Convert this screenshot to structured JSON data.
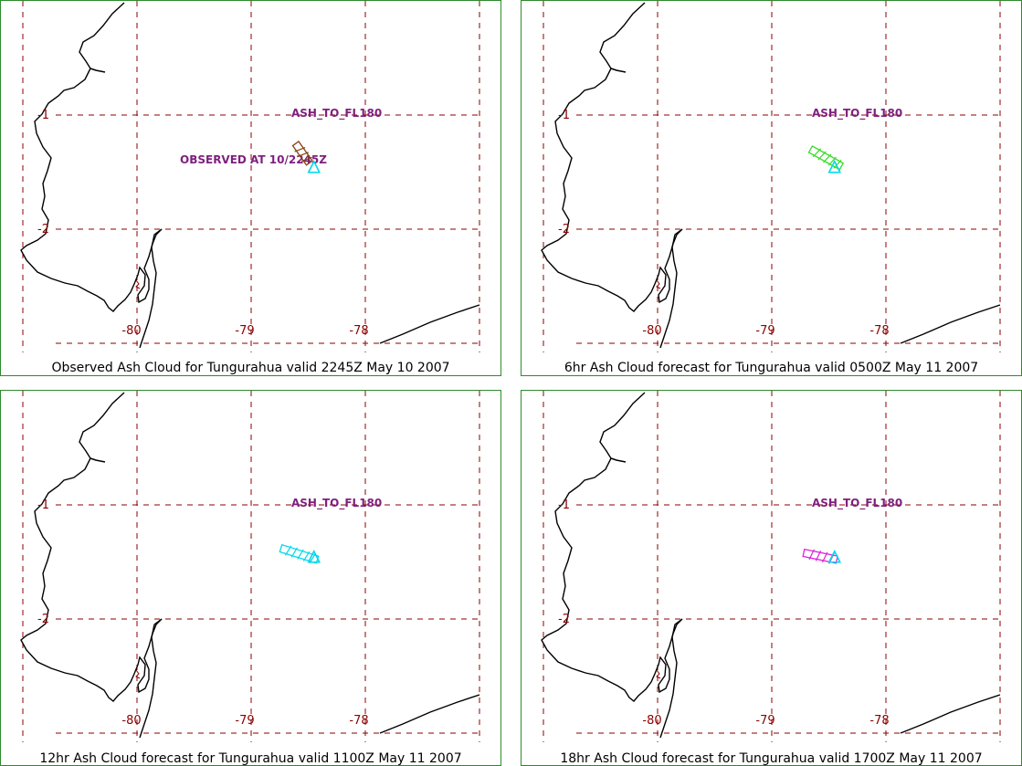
{
  "colors": {
    "grid": "#8b0000",
    "frame": "#2e8b2e",
    "coast": "#000000",
    "annotation": "#7f1f7f",
    "vent": "#00d8e8"
  },
  "lon_labels": [
    "-80",
    "-79",
    "-78"
  ],
  "lat_labels": [
    "-1",
    "-2"
  ],
  "panels": [
    {
      "caption": "Observed Ash Cloud for Tungurahua valid 2245Z May 10 2007",
      "annotations": [
        "ASH_TO_FL180",
        "OBSERVED AT 10/2245Z"
      ],
      "cloud_color": "#8b4513",
      "cloud": [
        [
          -78.61,
          -1.25
        ],
        [
          -78.49,
          -1.42
        ]
      ]
    },
    {
      "caption": "6hr Ash Cloud forecast for Tungurahua valid 0500Z May 11 2007",
      "annotations": [
        "ASH_TO_FL180"
      ],
      "cloud_color": "#33dd22",
      "cloud": [
        [
          -78.66,
          -1.3
        ],
        [
          -78.39,
          -1.45
        ]
      ]
    },
    {
      "caption": "12hr Ash Cloud forecast for Tungurahua valid 1100Z May 11 2007",
      "annotations": [
        "ASH_TO_FL180"
      ],
      "cloud_color": "#00d8e8",
      "cloud": [
        [
          -78.74,
          -1.38
        ],
        [
          -78.42,
          -1.48
        ]
      ]
    },
    {
      "caption": "18hr Ash Cloud forecast for Tungurahua valid 1700Z May 11 2007",
      "annotations": [
        "ASH_TO_FL180"
      ],
      "cloud_color": "#dd22dd",
      "cloud": [
        [
          -78.72,
          -1.42
        ],
        [
          -78.43,
          -1.48
        ]
      ]
    }
  ]
}
